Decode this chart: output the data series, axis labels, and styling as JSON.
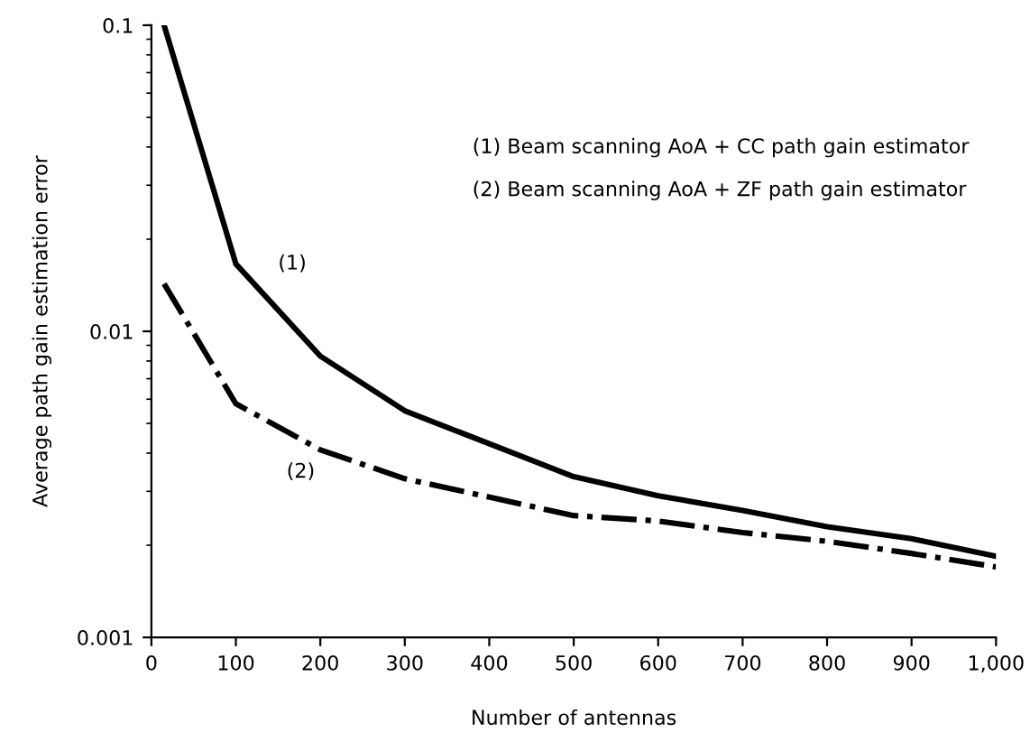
{
  "chart_data": {
    "type": "line",
    "xlabel": "Number of antennas",
    "ylabel": "Average path gain estimation error",
    "log": "y",
    "xlim": [
      0,
      1000
    ],
    "ylim": [
      0.001,
      0.1
    ],
    "xticks": [
      0,
      100,
      200,
      300,
      400,
      500,
      600,
      700,
      800,
      900,
      {
        "value": 1000,
        "label": "1,000"
      }
    ],
    "yticks": [
      0.001,
      0.01,
      0.1
    ],
    "grid": false,
    "legend": false,
    "marker": "none",
    "series": [
      {
        "color": "#000000",
        "line_style": "solid",
        "x": [
          15,
          100,
          200,
          300,
          500,
          600,
          700,
          800,
          900,
          1000
        ],
        "values": [
          0.1,
          0.0166,
          0.0083,
          0.0055,
          0.00335,
          0.0029,
          0.0026,
          0.0023,
          0.0021,
          0.00184
        ]
      },
      {
        "color": "#000000",
        "line_style": "dashdot",
        "x": [
          15,
          100,
          200,
          300,
          500,
          600,
          700,
          800,
          900,
          1000
        ],
        "values": [
          0.0143,
          0.0058,
          0.0041,
          0.0033,
          0.0025,
          0.0024,
          0.0022,
          0.00206,
          0.00188,
          0.0017
        ]
      }
    ],
    "annotations": [
      "(1) Beam scanning AoA + CC path gain estimator",
      "(2) Beam scanning AoA + ZF path gain estimator",
      "(1)",
      "(2)"
    ]
  }
}
